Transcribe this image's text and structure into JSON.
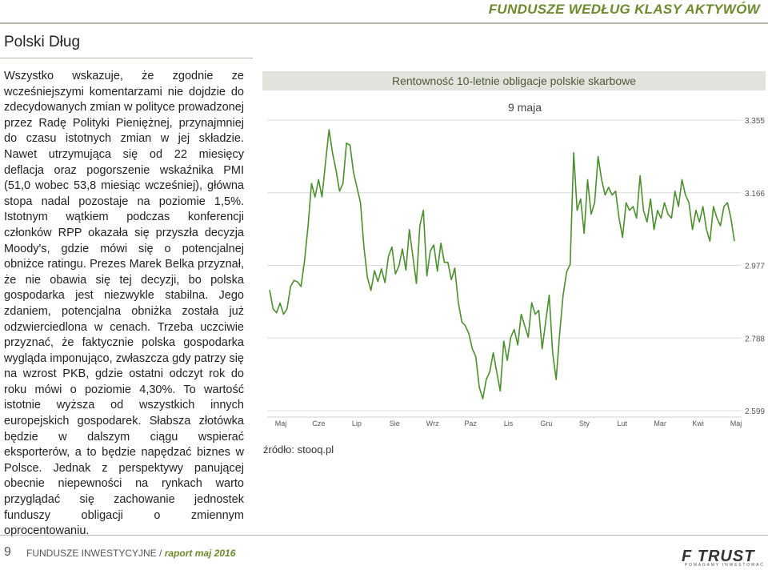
{
  "header": {
    "title": "FUNDUSZE WEDŁUG KLASY AKTYWÓW"
  },
  "section": {
    "title": "Polski Dług"
  },
  "article": {
    "text": "Wszystko wskazuje, że zgodnie ze wcześniejszymi komentarzami nie dojdzie do zdecydowanych zmian w polityce prowadzonej przez Radę Polityki Pieniężnej, przynajmniej do czasu istotnych zmian w jej składzie. Nawet utrzymująca się od 22 miesięcy deflacja oraz pogorszenie wskaźnika PMI (51,0 wobec 53,8 miesiąc wcześniej), główna stopa nadal pozostaje na poziomie 1,5%. Istotnym wątkiem podczas konferencji członków RPP okazała się przyszła decyzja Moody's, gdzie mówi się o potencjalnej obniżce ratingu. Prezes Marek Belka przyznał, że nie obawia się tej decyzji, bo polska gospodarka jest niezwykle stabilna. Jego zdaniem, potencjalna obniżka została już odzwierciedlona w cenach. Trzeba uczciwie przyznać, że faktycznie polska gospodarka wygląda imponująco, zwłaszcza gdy patrzy się na wzrost PKB, gdzie ostatni odczyt rok do roku mówi o poziomie 4,30%. To wartość istotnie wyższa od wszystkich innych europejskich gospodarek. Słabsza złotówka będzie w dalszym ciągu wspierać eksporterów, a to będzie napędzać biznes w Polsce. Jednak z perspektywy panującej obecnie niepewności na rynkach warto przyglądać się zachowanie jednostek funduszy obligacji o zmiennym oprocentowaniu."
  },
  "chart_data": {
    "type": "line",
    "title": "Rentowność 10-letnie obligacje polskie skarbowe",
    "subtitle": "9 maja",
    "source": "źródło: stooq.pl",
    "y_ticks": [
      "3.355",
      "3.166",
      "2.977",
      "2.788",
      "2.599"
    ],
    "y_tick_values": [
      3.355,
      3.166,
      2.977,
      2.788,
      2.599
    ],
    "ylim": [
      2.599,
      3.355
    ],
    "x_ticks": [
      "Maj",
      "Cze",
      "Lip",
      "Sie",
      "Wrz",
      "Paz",
      "Lis",
      "Gru",
      "Sty",
      "Lut",
      "Mar",
      "Kwi",
      "Maj"
    ],
    "grid": true,
    "line_color": "#4a8f2c",
    "series": [
      {
        "values": [
          2.913,
          2.864,
          2.854,
          2.879,
          2.85,
          2.864,
          2.922,
          2.938,
          2.934,
          2.922,
          2.99,
          3.08,
          3.19,
          3.155,
          3.2,
          3.155,
          3.245,
          3.33,
          3.27,
          3.225,
          3.17,
          3.19,
          3.295,
          3.29,
          3.22,
          3.18,
          3.14,
          3.025,
          2.945,
          2.912,
          2.963,
          2.935,
          2.968,
          2.932,
          3.0,
          3.025,
          2.955,
          2.975,
          3.02,
          2.965,
          3.07,
          3.0,
          2.93,
          3.08,
          3.12,
          2.95,
          3.015,
          3.03,
          2.962,
          3.035,
          2.985,
          2.985,
          2.94,
          2.97,
          2.88,
          2.83,
          2.82,
          2.8,
          2.76,
          2.74,
          2.66,
          2.63,
          2.68,
          2.7,
          2.75,
          2.7,
          2.65,
          2.78,
          2.73,
          2.79,
          2.81,
          2.77,
          2.85,
          2.82,
          2.79,
          2.88,
          2.85,
          2.86,
          2.76,
          2.83,
          2.9,
          2.75,
          2.68,
          2.8,
          2.9,
          2.96,
          2.98,
          3.27,
          3.12,
          3.15,
          3.06,
          3.2,
          3.11,
          3.14,
          3.26,
          3.2,
          3.16,
          3.18,
          3.16,
          3.17,
          3.1,
          3.05,
          3.14,
          3.12,
          3.13,
          3.1,
          3.21,
          3.12,
          3.09,
          3.15,
          3.07,
          3.12,
          3.1,
          3.14,
          3.11,
          3.1,
          3.17,
          3.13,
          3.2,
          3.16,
          3.14,
          3.07,
          3.12,
          3.09,
          3.13,
          3.07,
          3.04,
          3.13,
          3.1,
          3.08,
          3.13,
          3.14,
          3.1,
          3.04
        ]
      }
    ]
  },
  "footer": {
    "page": "9",
    "publication": "FUNDUSZE INWESTYCYJNE / ",
    "issue": "raport maj 2016",
    "logo_main": "F TRUST",
    "logo_sub": "POMAGAMY INWESTOWAĆ"
  }
}
